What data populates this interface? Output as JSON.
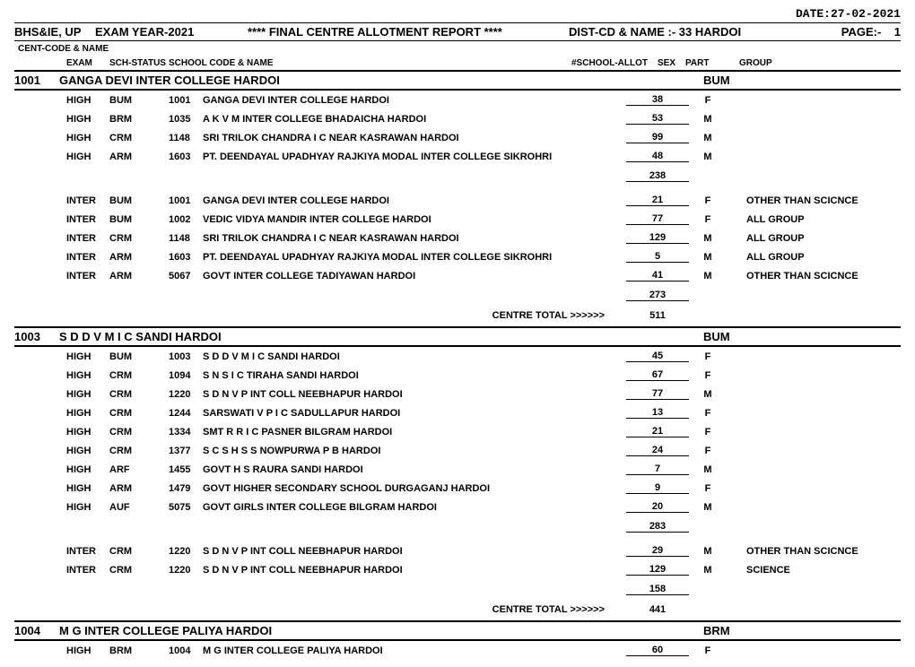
{
  "date_label": "DATE:27-02-2021",
  "header": {
    "left": "BHS&IE, UP",
    "exam_year": "EXAM YEAR-2021",
    "title": "****  FINAL CENTRE  ALLOTMENT REPORT   ****",
    "dist_label": "DIST-CD & NAME :-",
    "dist_value": "33 HARDOI",
    "page_label": "PAGE:-",
    "page_no": "1"
  },
  "cent_label": "CENT-CODE & NAME",
  "columns": {
    "exam": "EXAM",
    "status": "SCH-STATUS",
    "school": "SCHOOL CODE & NAME",
    "allot": "#SCHOOL-ALLOT",
    "sex": "SEX",
    "part": "PART",
    "group": "GROUP"
  },
  "centre_total_label": "CENTRE TOTAL >>>>>>",
  "centres": [
    {
      "code": "1001",
      "name": "GANGA DEVI INTER COLLEGE HARDOI",
      "group": "BUM",
      "blocks": [
        {
          "rows": [
            {
              "exam": "HIGH",
              "status": "BUM",
              "code": "1001",
              "name": "GANGA DEVI INTER COLLEGE HARDOI",
              "allot": "38",
              "sex": "F",
              "group": ""
            },
            {
              "exam": "HIGH",
              "status": "BRM",
              "code": "1035",
              "name": "A K V M INTER COLLEGE BHADAICHA HARDOI",
              "allot": "53",
              "sex": "M",
              "group": ""
            },
            {
              "exam": "HIGH",
              "status": "CRM",
              "code": "1148",
              "name": "SRI TRILOK CHANDRA I C NEAR KASRAWAN HARDOI",
              "allot": "99",
              "sex": "M",
              "group": ""
            },
            {
              "exam": "HIGH",
              "status": "ARM",
              "code": "1603",
              "name": "PT. DEENDAYAL UPADHYAY RAJKIYA MODAL INTER COLLEGE SIKROHRI",
              "allot": "48",
              "sex": "M",
              "group": ""
            }
          ],
          "subtotal": "238"
        },
        {
          "rows": [
            {
              "exam": "INTER",
              "status": "BUM",
              "code": "1001",
              "name": "GANGA DEVI INTER COLLEGE HARDOI",
              "allot": "21",
              "sex": "F",
              "group": "OTHER THAN SCICNCE"
            },
            {
              "exam": "INTER",
              "status": "BUM",
              "code": "1002",
              "name": "VEDIC VIDYA MANDIR INTER COLLEGE HARDOI",
              "allot": "77",
              "sex": "F",
              "group": "ALL GROUP"
            },
            {
              "exam": "INTER",
              "status": "CRM",
              "code": "1148",
              "name": "SRI TRILOK CHANDRA I C NEAR KASRAWAN HARDOI",
              "allot": "129",
              "sex": "M",
              "group": "ALL GROUP"
            },
            {
              "exam": "INTER",
              "status": "ARM",
              "code": "1603",
              "name": "PT. DEENDAYAL UPADHYAY RAJKIYA MODAL INTER COLLEGE SIKROHRI",
              "allot": "5",
              "sex": "M",
              "group": "ALL GROUP"
            },
            {
              "exam": "INTER",
              "status": "ARM",
              "code": "5067",
              "name": "GOVT INTER COLLEGE TADIYAWAN HARDOI",
              "allot": "41",
              "sex": "M",
              "group": "OTHER THAN SCICNCE"
            }
          ],
          "subtotal": "273"
        }
      ],
      "centre_total": "511"
    },
    {
      "code": "1003",
      "name": "S D D V M I C SANDI HARDOI",
      "group": "BUM",
      "blocks": [
        {
          "rows": [
            {
              "exam": "HIGH",
              "status": "BUM",
              "code": "1003",
              "name": "S D D V M I C SANDI HARDOI",
              "allot": "45",
              "sex": "F",
              "group": ""
            },
            {
              "exam": "HIGH",
              "status": "CRM",
              "code": "1094",
              "name": "S N S I C TIRAHA SANDI HARDOI",
              "allot": "67",
              "sex": "F",
              "group": ""
            },
            {
              "exam": "HIGH",
              "status": "CRM",
              "code": "1220",
              "name": "S D N V P INT COLL NEEBHAPUR HARDOI",
              "allot": "77",
              "sex": "M",
              "group": ""
            },
            {
              "exam": "HIGH",
              "status": "CRM",
              "code": "1244",
              "name": "SARSWATI V P I C SADULLAPUR HARDOI",
              "allot": "13",
              "sex": "F",
              "group": ""
            },
            {
              "exam": "HIGH",
              "status": "CRM",
              "code": "1334",
              "name": "SMT R R I C PASNER BILGRAM HARDOI",
              "allot": "21",
              "sex": "F",
              "group": ""
            },
            {
              "exam": "HIGH",
              "status": "CRM",
              "code": "1377",
              "name": "S C S H S S NOWPURWA P B HARDOI",
              "allot": "24",
              "sex": "F",
              "group": ""
            },
            {
              "exam": "HIGH",
              "status": "ARF",
              "code": "1455",
              "name": "GOVT H S RAURA SANDI HARDOI",
              "allot": "7",
              "sex": "M",
              "group": ""
            },
            {
              "exam": "HIGH",
              "status": "ARM",
              "code": "1479",
              "name": "GOVT HIGHER SECONDARY SCHOOL DURGAGANJ HARDOI",
              "allot": "9",
              "sex": "F",
              "group": ""
            },
            {
              "exam": "HIGH",
              "status": "AUF",
              "code": "5075",
              "name": "GOVT GIRLS INTER COLLEGE BILGRAM HARDOI",
              "allot": "20",
              "sex": "M",
              "group": ""
            }
          ],
          "subtotal": "283"
        },
        {
          "rows": [
            {
              "exam": "INTER",
              "status": "CRM",
              "code": "1220",
              "name": "S D N V P INT COLL NEEBHAPUR HARDOI",
              "allot": "29",
              "sex": "M",
              "group": "OTHER THAN SCICNCE"
            },
            {
              "exam": "INTER",
              "status": "CRM",
              "code": "1220",
              "name": "S D N V P INT COLL NEEBHAPUR HARDOI",
              "allot": "129",
              "sex": "M",
              "group": "SCIENCE"
            }
          ],
          "subtotal": "158"
        }
      ],
      "centre_total": "441"
    },
    {
      "code": "1004",
      "name": "M G INTER COLLEGE PALIYA HARDOI",
      "group": "BRM",
      "blocks": [
        {
          "rows": [
            {
              "exam": "HIGH",
              "status": "BRM",
              "code": "1004",
              "name": "M G INTER COLLEGE PALIYA HARDOI",
              "allot": "60",
              "sex": "F",
              "group": ""
            }
          ]
        }
      ]
    }
  ]
}
